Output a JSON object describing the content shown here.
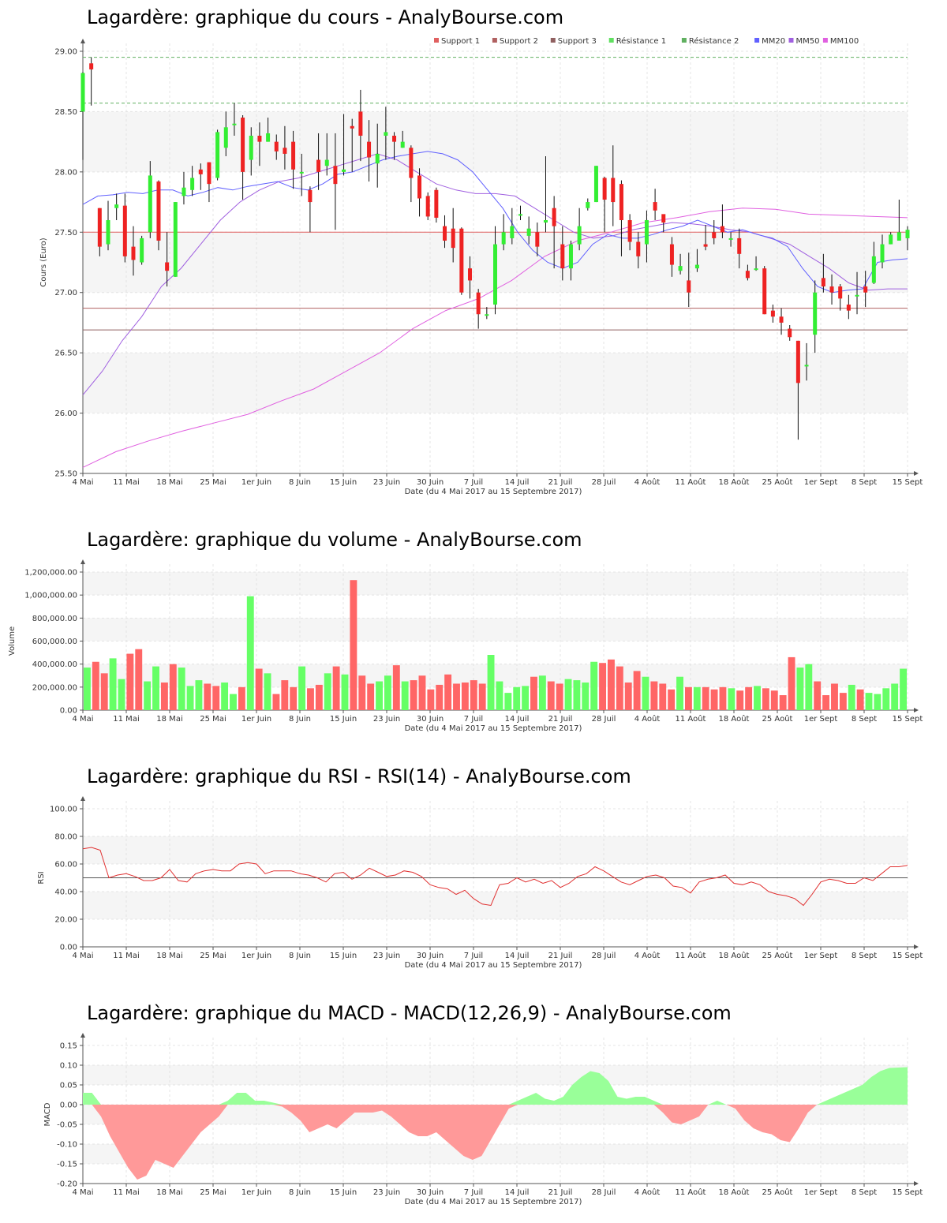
{
  "charts": {
    "price_title": "Lagardère: graphique du cours - AnalyBourse.com",
    "volume_title": "Lagardère: graphique du volume - AnalyBourse.com",
    "rsi_title": "Lagardère: graphique du RSI - RSI(14) - AnalyBourse.com",
    "macd_title": "Lagardère: graphique du MACD - MACD(12,26,9) - AnalyBourse.com",
    "x_axis_label": "Date (du 4 Mai 2017 au 15 Septembre 2017)",
    "x_ticks": [
      "4 Mai",
      "11 Mai",
      "18 Mai",
      "25 Mai",
      "1er Juin",
      "8 Juin",
      "15 Juin",
      "23 Juin",
      "30 Juin",
      "7 Juil",
      "14 Juil",
      "21 Juil",
      "28 Juil",
      "4 Août",
      "11 Août",
      "18 Août",
      "25 Août",
      "1er Sept",
      "8 Sept",
      "15 Sept"
    ],
    "price_ylabel": "Cours (Euro)",
    "volume_ylabel": "Volume",
    "rsi_ylabel": "RSI",
    "macd_ylabel": "MACD"
  },
  "chart_data": [
    {
      "type": "candlestick",
      "title": "Lagardère: graphique du cours - AnalyBourse.com",
      "xlabel": "Date (du 4 Mai 2017 au 15 Septembre 2017)",
      "ylabel": "Cours (Euro)",
      "ylim": [
        25.5,
        29.0
      ],
      "yticks": [
        "25.50",
        "26.00",
        "26.50",
        "27.00",
        "27.50",
        "28.00",
        "28.50",
        "29.00"
      ],
      "grid": true,
      "legend_position": "top-right",
      "legend": [
        {
          "name": "Support 1",
          "color": "#e06060"
        },
        {
          "name": "Support 2",
          "color": "#b06060"
        },
        {
          "name": "Support 3",
          "color": "#906060"
        },
        {
          "name": "Résistance 1",
          "color": "#60e060"
        },
        {
          "name": "Résistance 2",
          "color": "#60b060"
        },
        {
          "name": "MM20",
          "color": "#6060ff"
        },
        {
          "name": "MM50",
          "color": "#a060e0"
        },
        {
          "name": "MM100",
          "color": "#e060e0"
        }
      ],
      "levels": {
        "support_1": 27.5,
        "support_2": 26.87,
        "support_3": 26.69,
        "resistance_1": 28.57,
        "resistance_2": 28.95
      },
      "candles": [
        [
          28.5,
          28.82,
          28.1,
          28.83
        ],
        [
          28.9,
          28.85,
          28.55,
          28.95
        ],
        [
          27.7,
          27.38,
          27.3,
          27.7
        ],
        [
          27.4,
          27.6,
          27.35,
          27.76
        ],
        [
          27.7,
          27.73,
          27.6,
          27.82
        ],
        [
          27.72,
          27.3,
          27.25,
          27.82
        ],
        [
          27.38,
          27.27,
          27.14,
          27.55
        ],
        [
          27.25,
          27.45,
          27.23,
          27.47
        ],
        [
          27.5,
          27.97,
          27.45,
          28.09
        ],
        [
          27.92,
          27.43,
          27.35,
          27.93
        ],
        [
          27.25,
          27.18,
          27.05,
          27.5
        ],
        [
          27.13,
          27.75,
          27.13,
          27.75
        ],
        [
          27.8,
          27.87,
          27.73,
          28.0
        ],
        [
          27.85,
          27.95,
          27.8,
          28.05
        ],
        [
          28.02,
          27.98,
          27.85,
          28.07
        ],
        [
          28.08,
          27.9,
          27.75,
          28.08
        ],
        [
          27.95,
          28.33,
          27.93,
          28.35
        ],
        [
          28.2,
          28.37,
          28.13,
          28.5
        ],
        [
          28.4,
          28.4,
          28.3,
          28.57
        ],
        [
          28.45,
          28.0,
          27.77,
          28.47
        ],
        [
          28.1,
          28.3,
          27.97,
          28.37
        ],
        [
          28.3,
          28.25,
          28.05,
          28.41
        ],
        [
          28.25,
          28.32,
          28.25,
          28.45
        ],
        [
          28.25,
          28.17,
          28.1,
          28.31
        ],
        [
          28.2,
          28.15,
          28.02,
          28.38
        ],
        [
          28.25,
          28.02,
          27.86,
          28.34
        ],
        [
          28.0,
          28.0,
          27.8,
          28.15
        ],
        [
          27.85,
          27.75,
          27.5,
          27.88
        ],
        [
          28.1,
          28.0,
          27.85,
          28.32
        ],
        [
          28.05,
          28.1,
          27.97,
          28.32
        ],
        [
          28.05,
          27.9,
          27.52,
          28.32
        ],
        [
          28.0,
          28.02,
          27.97,
          28.48
        ],
        [
          28.38,
          28.36,
          28.0,
          28.44
        ],
        [
          28.5,
          28.3,
          28.09,
          28.68
        ],
        [
          28.25,
          28.12,
          27.92,
          28.43
        ],
        [
          28.07,
          28.15,
          27.87,
          28.4
        ],
        [
          28.3,
          28.33,
          28.1,
          28.54
        ],
        [
          28.3,
          28.25,
          28.1,
          28.33
        ],
        [
          28.2,
          28.25,
          28.2,
          28.34
        ],
        [
          28.2,
          27.95,
          27.75,
          28.22
        ],
        [
          27.97,
          27.78,
          27.63,
          28.03
        ],
        [
          27.8,
          27.63,
          27.6,
          27.83
        ],
        [
          27.85,
          27.62,
          27.58,
          27.87
        ],
        [
          27.55,
          27.43,
          27.37,
          27.64
        ],
        [
          27.53,
          27.37,
          27.25,
          27.7
        ],
        [
          27.53,
          27.0,
          26.98,
          27.54
        ],
        [
          27.2,
          27.1,
          26.95,
          27.3
        ],
        [
          27.0,
          26.82,
          26.7,
          27.03
        ],
        [
          26.82,
          26.82,
          26.78,
          26.88
        ],
        [
          26.9,
          27.4,
          26.82,
          27.55
        ],
        [
          27.4,
          27.5,
          27.35,
          27.65
        ],
        [
          27.45,
          27.55,
          27.4,
          27.7
        ],
        [
          27.65,
          27.65,
          27.6,
          27.72
        ],
        [
          27.47,
          27.53,
          27.4,
          27.63
        ],
        [
          27.5,
          27.38,
          27.3,
          27.58
        ],
        [
          27.58,
          27.6,
          27.5,
          28.13
        ],
        [
          27.7,
          27.55,
          27.2,
          27.8
        ],
        [
          27.4,
          27.2,
          27.1,
          27.55
        ],
        [
          27.2,
          27.4,
          27.1,
          27.43
        ],
        [
          27.4,
          27.55,
          27.35,
          27.7
        ],
        [
          27.7,
          27.75,
          27.68,
          27.78
        ],
        [
          27.75,
          28.05,
          27.75,
          28.05
        ],
        [
          27.95,
          27.77,
          27.5,
          27.96
        ],
        [
          27.95,
          27.75,
          27.55,
          28.22
        ],
        [
          27.9,
          27.6,
          27.3,
          27.93
        ],
        [
          27.6,
          27.42,
          27.35,
          27.65
        ],
        [
          27.42,
          27.3,
          27.2,
          27.5
        ],
        [
          27.4,
          27.6,
          27.25,
          27.68
        ],
        [
          27.75,
          27.68,
          27.6,
          27.86
        ],
        [
          27.65,
          27.58,
          27.5,
          27.62
        ],
        [
          27.4,
          27.23,
          27.13,
          27.46
        ],
        [
          27.18,
          27.22,
          27.15,
          27.32
        ],
        [
          27.1,
          27.0,
          26.88,
          27.33
        ],
        [
          27.2,
          27.23,
          27.17,
          27.36
        ],
        [
          27.4,
          27.38,
          27.35,
          27.56
        ],
        [
          27.5,
          27.45,
          27.4,
          27.6
        ],
        [
          27.55,
          27.5,
          27.45,
          27.73
        ],
        [
          27.45,
          27.45,
          27.38,
          27.5
        ],
        [
          27.45,
          27.32,
          27.2,
          27.53
        ],
        [
          27.18,
          27.12,
          27.1,
          27.23
        ],
        [
          27.2,
          27.2,
          27.18,
          27.3
        ],
        [
          27.2,
          26.82,
          26.82,
          27.22
        ],
        [
          26.85,
          26.8,
          26.75,
          26.9
        ],
        [
          26.8,
          26.75,
          26.65,
          26.87
        ],
        [
          26.7,
          26.63,
          26.6,
          26.73
        ],
        [
          26.6,
          26.25,
          25.78,
          26.6
        ],
        [
          26.4,
          26.4,
          26.27,
          26.58
        ],
        [
          26.65,
          27.0,
          26.5,
          27.1
        ],
        [
          27.12,
          27.05,
          27.0,
          27.32
        ],
        [
          27.05,
          27.0,
          26.9,
          27.15
        ],
        [
          27.05,
          26.95,
          26.85,
          27.07
        ],
        [
          26.9,
          26.85,
          26.78,
          26.98
        ],
        [
          26.98,
          26.98,
          26.82,
          27.17
        ],
        [
          27.05,
          27.0,
          26.88,
          27.18
        ],
        [
          27.08,
          27.3,
          27.07,
          27.42
        ],
        [
          27.25,
          27.4,
          27.2,
          27.48
        ],
        [
          27.4,
          27.48,
          27.4,
          27.5
        ],
        [
          27.43,
          27.5,
          27.43,
          27.77
        ],
        [
          27.45,
          27.52,
          27.35,
          27.55
        ]
      ],
      "mm20": [
        27.73,
        27.8,
        27.81,
        27.83,
        27.82,
        27.85,
        27.85,
        27.8,
        27.83,
        27.87,
        27.85,
        27.88,
        27.9,
        27.92,
        27.87,
        27.85,
        27.9,
        27.98,
        28.0,
        28.05,
        28.1,
        28.13,
        28.15,
        28.17,
        28.15,
        28.1,
        28.0,
        27.85,
        27.7,
        27.5,
        27.35,
        27.25,
        27.2,
        27.25,
        27.4,
        27.48,
        27.45,
        27.45,
        27.48,
        27.52,
        27.55,
        27.6,
        27.55,
        27.5,
        27.52,
        27.48,
        27.45,
        27.38,
        27.2,
        27.05,
        27.0,
        27.02,
        27.03,
        27.25,
        27.27,
        27.28
      ],
      "mm50": [
        26.15,
        26.35,
        26.6,
        26.8,
        27.05,
        27.2,
        27.4,
        27.6,
        27.75,
        27.85,
        27.92,
        27.95,
        28.0,
        28.05,
        28.1,
        28.15,
        28.1,
        28.0,
        27.9,
        27.85,
        27.82,
        27.82,
        27.8,
        27.7,
        27.6,
        27.5,
        27.45,
        27.47,
        27.52,
        27.55,
        27.58,
        27.57,
        27.55,
        27.52,
        27.5,
        27.45,
        27.4,
        27.3,
        27.2,
        27.08,
        27.02,
        27.03,
        27.03
      ],
      "mm100": [
        25.55,
        25.68,
        25.77,
        25.85,
        25.92,
        25.99,
        26.1,
        26.2,
        26.35,
        26.5,
        26.7,
        26.85,
        26.95,
        27.1,
        27.3,
        27.43,
        27.5,
        27.58,
        27.62,
        27.67,
        27.7,
        27.69,
        27.65,
        27.64,
        27.63,
        27.62
      ]
    },
    {
      "type": "bar",
      "title": "Lagardère: graphique du volume - AnalyBourse.com",
      "xlabel": "Date (du 4 Mai 2017 au 15 Septembre 2017)",
      "ylabel": "Volume",
      "ylim": [
        0,
        1200000
      ],
      "yticks": [
        "0.00",
        "200,000.00",
        "400,000.00",
        "600,000.00",
        "800,000.00",
        "1,000,000.00",
        "1,200,000.00"
      ],
      "values": [
        370000,
        420000,
        320000,
        450000,
        270000,
        490000,
        530000,
        250000,
        380000,
        240000,
        400000,
        370000,
        210000,
        260000,
        230000,
        210000,
        240000,
        140000,
        200000,
        990000,
        360000,
        320000,
        140000,
        260000,
        200000,
        380000,
        190000,
        220000,
        320000,
        380000,
        310000,
        1130000,
        300000,
        230000,
        250000,
        300000,
        390000,
        250000,
        260000,
        300000,
        180000,
        220000,
        310000,
        230000,
        240000,
        260000,
        230000,
        480000,
        250000,
        150000,
        200000,
        210000,
        290000,
        300000,
        250000,
        230000,
        270000,
        260000,
        240000,
        420000,
        410000,
        440000,
        380000,
        240000,
        340000,
        290000,
        250000,
        230000,
        180000,
        290000,
        200000,
        200000,
        200000,
        180000,
        200000,
        190000,
        170000,
        200000,
        210000,
        190000,
        170000,
        130000,
        460000,
        370000,
        400000,
        250000,
        130000,
        230000,
        150000,
        220000,
        180000,
        150000,
        140000,
        190000,
        230000,
        360000
      ],
      "colors_up": "#66ff66",
      "colors_down": "#ff6666"
    },
    {
      "type": "line",
      "title": "Lagardère: graphique du RSI - RSI(14) - AnalyBourse.com",
      "xlabel": "Date (du 4 Mai 2017 au 15 Septembre 2017)",
      "ylabel": "RSI",
      "ylim": [
        0,
        100
      ],
      "yticks": [
        "0.00",
        "20.00",
        "40.00",
        "60.00",
        "80.00",
        "100.00"
      ],
      "reference_line": 50,
      "color": "#e03030",
      "values": [
        71,
        72,
        70,
        50,
        52,
        53,
        51,
        48,
        48,
        50,
        56,
        48,
        47,
        53,
        55,
        56,
        55,
        55,
        60,
        61,
        60,
        53,
        55,
        55,
        55,
        53,
        52,
        50,
        47,
        53,
        54,
        49,
        52,
        57,
        54,
        51,
        52,
        55,
        54,
        51,
        45,
        43,
        42,
        38,
        41,
        35,
        31,
        30,
        45,
        46,
        50,
        47,
        49,
        46,
        48,
        43,
        46,
        51,
        53,
        58,
        55,
        51,
        47,
        45,
        48,
        51,
        52,
        50,
        44,
        43,
        39,
        47,
        49,
        50,
        52,
        46,
        45,
        47,
        45,
        40,
        38,
        37,
        35,
        30,
        38,
        47,
        49,
        48,
        46,
        46,
        50,
        48,
        53,
        58,
        58,
        59
      ]
    },
    {
      "type": "area",
      "title": "Lagardère: graphique du MACD - MACD(12,26,9) - AnalyBourse.com",
      "xlabel": "Date (du 4 Mai 2017 au 15 Septembre 2017)",
      "ylabel": "MACD",
      "ylim": [
        -0.2,
        0.15
      ],
      "yticks": [
        "-0.20",
        "-0.15",
        "-0.10",
        "-0.05",
        "0.00",
        "0.05",
        "0.10",
        "0.15"
      ],
      "positive_color": "#99ff99",
      "negative_color": "#ff9999",
      "values": [
        0.03,
        0.03,
        -0.03,
        -0.08,
        -0.12,
        -0.16,
        -0.19,
        -0.18,
        -0.14,
        -0.15,
        -0.16,
        -0.13,
        -0.1,
        -0.07,
        -0.05,
        -0.03,
        0.01,
        0.03,
        0.03,
        0.01,
        0.01,
        0.005,
        -0.005,
        -0.02,
        -0.04,
        -0.07,
        -0.06,
        -0.05,
        -0.06,
        -0.04,
        -0.02,
        -0.02,
        -0.02,
        -0.015,
        -0.03,
        -0.05,
        -0.07,
        -0.08,
        -0.08,
        -0.07,
        -0.09,
        -0.11,
        -0.13,
        -0.14,
        -0.13,
        -0.09,
        -0.05,
        -0.01,
        0.01,
        0.02,
        0.03,
        0.015,
        0.01,
        0.02,
        0.05,
        0.07,
        0.085,
        0.08,
        0.06,
        0.02,
        0.015,
        0.02,
        0.02,
        0.01,
        -0.02,
        -0.045,
        -0.05,
        -0.04,
        -0.03,
        0.0,
        0.01,
        0.0,
        -0.01,
        -0.04,
        -0.06,
        -0.07,
        -0.075,
        -0.09,
        -0.095,
        -0.06,
        -0.02,
        0.0,
        0.01,
        0.02,
        0.03,
        0.04,
        0.05,
        0.07,
        0.085,
        0.093,
        0.094,
        0.095
      ]
    }
  ]
}
